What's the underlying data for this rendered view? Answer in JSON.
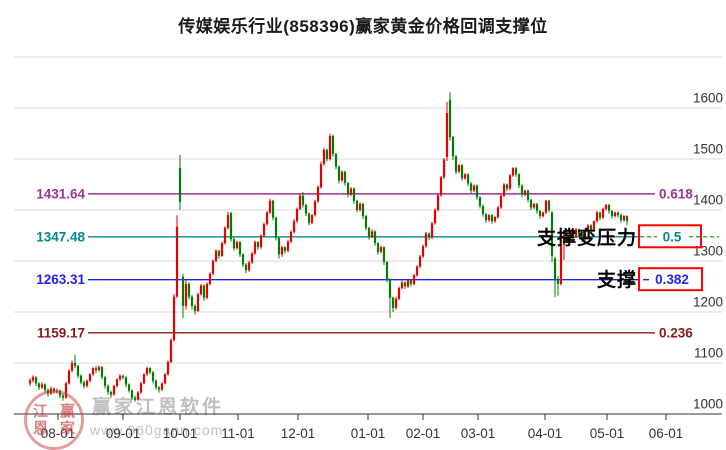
{
  "title": "传媒娱乐行业(858396)赢家黄金价格回调支撑位",
  "annotations": {
    "resistance": "支撑变压力",
    "support": "支撑"
  },
  "watermark": {
    "brand": "赢家江恩软件",
    "url": "www.360gann.com",
    "stamp_chars": [
      "江",
      "赢",
      "恩",
      "家"
    ]
  },
  "colors": {
    "up": "#e60000",
    "down": "#027d02",
    "grid": "#d9d9d9",
    "axis": "#333333",
    "tick_label": "#333333",
    "box_border": "#ff0000",
    "dashed_extension": "#1f9e1f"
  },
  "y_axis": {
    "labels": [
      "1600",
      "1500",
      "1400",
      "1300",
      "1200",
      "1100",
      "1000"
    ]
  },
  "x_axis": {
    "labels": [
      "08-01",
      "09-01",
      "10-01",
      "11-01",
      "12-01",
      "01-01",
      "02-01",
      "03-01",
      "04-01",
      "05-01",
      "06-01"
    ],
    "tick_positions": [
      58,
      123,
      180,
      238,
      298,
      368,
      423,
      478,
      545,
      607,
      666
    ]
  },
  "fib_levels": [
    {
      "price": 1431.64,
      "price_label": "1431.64",
      "ratio_label": "0.618",
      "color": "#993399",
      "boxed": false
    },
    {
      "price": 1347.48,
      "price_label": "1347.48",
      "ratio_label": "0.5",
      "color": "#008b8b",
      "boxed": true,
      "dashed_extension": true
    },
    {
      "price": 1263.31,
      "price_label": "1263.31",
      "ratio_label": "0.382",
      "color": "#2222ee",
      "boxed": true,
      "dashed_extension": false
    },
    {
      "price": 1159.17,
      "price_label": "1159.17",
      "ratio_label": "0.236",
      "color": "#8b1a1a",
      "boxed": false
    }
  ],
  "chart_data": {
    "type": "candlestick",
    "title": "传媒娱乐行业(858396)赢家黄金价格回调支撑位",
    "ylim": [
      1000,
      1700
    ],
    "grid_prices": [
      1700,
      1600,
      1500,
      1400,
      1300,
      1200,
      1100
    ],
    "x_range_labels": [
      "08-01",
      "06-01"
    ],
    "up_means": "red (Chinese convention: red = up, green = down)",
    "candles": [
      [
        1060,
        1070,
        1055,
        1066
      ],
      [
        1066,
        1076,
        1062,
        1072
      ],
      [
        1072,
        1074,
        1055,
        1060
      ],
      [
        1060,
        1062,
        1047,
        1052
      ],
      [
        1052,
        1062,
        1049,
        1058
      ],
      [
        1058,
        1060,
        1042,
        1047
      ],
      [
        1047,
        1050,
        1034,
        1040
      ],
      [
        1040,
        1054,
        1037,
        1050
      ],
      [
        1050,
        1052,
        1040,
        1044
      ],
      [
        1044,
        1050,
        1040,
        1046
      ],
      [
        1046,
        1048,
        1031,
        1036
      ],
      [
        1036,
        1040,
        1026,
        1032
      ],
      [
        1032,
        1063,
        1030,
        1060
      ],
      [
        1060,
        1088,
        1058,
        1085
      ],
      [
        1085,
        1105,
        1082,
        1100
      ],
      [
        1100,
        1116,
        1090,
        1094
      ],
      [
        1094,
        1096,
        1070,
        1075
      ],
      [
        1075,
        1078,
        1058,
        1062
      ],
      [
        1062,
        1066,
        1050,
        1055
      ],
      [
        1055,
        1068,
        1052,
        1065
      ],
      [
        1065,
        1080,
        1062,
        1078
      ],
      [
        1078,
        1092,
        1075,
        1090
      ],
      [
        1090,
        1094,
        1080,
        1086
      ],
      [
        1086,
        1095,
        1083,
        1092
      ],
      [
        1092,
        1094,
        1068,
        1072
      ],
      [
        1072,
        1075,
        1050,
        1055
      ],
      [
        1055,
        1058,
        1038,
        1043
      ],
      [
        1043,
        1046,
        1032,
        1038
      ],
      [
        1038,
        1057,
        1036,
        1055
      ],
      [
        1055,
        1070,
        1052,
        1068
      ],
      [
        1068,
        1078,
        1064,
        1075
      ],
      [
        1075,
        1077,
        1068,
        1072
      ],
      [
        1072,
        1074,
        1052,
        1058
      ],
      [
        1058,
        1060,
        1042,
        1046
      ],
      [
        1046,
        1048,
        1028,
        1032
      ],
      [
        1032,
        1036,
        1024,
        1028
      ],
      [
        1028,
        1045,
        1026,
        1042
      ],
      [
        1042,
        1063,
        1040,
        1060
      ],
      [
        1060,
        1080,
        1058,
        1078
      ],
      [
        1078,
        1093,
        1075,
        1090
      ],
      [
        1090,
        1092,
        1078,
        1082
      ],
      [
        1082,
        1084,
        1060,
        1065
      ],
      [
        1065,
        1068,
        1048,
        1052
      ],
      [
        1052,
        1055,
        1042,
        1048
      ],
      [
        1048,
        1062,
        1045,
        1060
      ],
      [
        1060,
        1080,
        1058,
        1078
      ],
      [
        1078,
        1105,
        1075,
        1102
      ],
      [
        1102,
        1148,
        1100,
        1145
      ],
      [
        1145,
        1235,
        1142,
        1230
      ],
      [
        1230,
        1390,
        1228,
        1367
      ],
      [
        1482,
        1508,
        1400,
        1416
      ],
      [
        1269,
        1275,
        1188,
        1212
      ],
      [
        1212,
        1262,
        1205,
        1255
      ],
      [
        1255,
        1258,
        1225,
        1230
      ],
      [
        1230,
        1233,
        1205,
        1212
      ],
      [
        1212,
        1215,
        1195,
        1202
      ],
      [
        1202,
        1238,
        1200,
        1235
      ],
      [
        1235,
        1255,
        1232,
        1252
      ],
      [
        1252,
        1254,
        1222,
        1228
      ],
      [
        1228,
        1258,
        1225,
        1255
      ],
      [
        1255,
        1278,
        1252,
        1275
      ],
      [
        1275,
        1303,
        1272,
        1300
      ],
      [
        1300,
        1323,
        1297,
        1320
      ],
      [
        1320,
        1322,
        1305,
        1310
      ],
      [
        1310,
        1338,
        1308,
        1335
      ],
      [
        1335,
        1368,
        1332,
        1365
      ],
      [
        1365,
        1396,
        1362,
        1390
      ],
      [
        1394,
        1396,
        1338,
        1343
      ],
      [
        1343,
        1346,
        1320,
        1325
      ],
      [
        1325,
        1340,
        1322,
        1337
      ],
      [
        1337,
        1339,
        1308,
        1313
      ],
      [
        1313,
        1315,
        1288,
        1293
      ],
      [
        1293,
        1296,
        1276,
        1282
      ],
      [
        1282,
        1300,
        1279,
        1297
      ],
      [
        1297,
        1318,
        1294,
        1315
      ],
      [
        1315,
        1340,
        1312,
        1337
      ],
      [
        1337,
        1339,
        1322,
        1327
      ],
      [
        1327,
        1352,
        1324,
        1350
      ],
      [
        1350,
        1375,
        1347,
        1372
      ],
      [
        1372,
        1398,
        1369,
        1395
      ],
      [
        1395,
        1422,
        1392,
        1418
      ],
      [
        1418,
        1420,
        1380,
        1385
      ],
      [
        1385,
        1387,
        1340,
        1345
      ],
      [
        1345,
        1347,
        1305,
        1313
      ],
      [
        1313,
        1330,
        1308,
        1327
      ],
      [
        1327,
        1329,
        1315,
        1320
      ],
      [
        1320,
        1342,
        1317,
        1338
      ],
      [
        1338,
        1360,
        1335,
        1357
      ],
      [
        1357,
        1382,
        1354,
        1378
      ],
      [
        1378,
        1405,
        1375,
        1402
      ],
      [
        1402,
        1432,
        1399,
        1428
      ],
      [
        1428,
        1435,
        1405,
        1410
      ],
      [
        1410,
        1412,
        1388,
        1393
      ],
      [
        1393,
        1395,
        1370,
        1375
      ],
      [
        1375,
        1392,
        1372,
        1390
      ],
      [
        1390,
        1420,
        1387,
        1417
      ],
      [
        1417,
        1448,
        1414,
        1445
      ],
      [
        1445,
        1495,
        1442,
        1490
      ],
      [
        1490,
        1522,
        1487,
        1518
      ],
      [
        1518,
        1520,
        1495,
        1500
      ],
      [
        1500,
        1550,
        1497,
        1545
      ],
      [
        1545,
        1548,
        1505,
        1510
      ],
      [
        1510,
        1512,
        1480,
        1485
      ],
      [
        1485,
        1487,
        1452,
        1458
      ],
      [
        1458,
        1478,
        1455,
        1475
      ],
      [
        1475,
        1477,
        1448,
        1453
      ],
      [
        1453,
        1455,
        1425,
        1430
      ],
      [
        1430,
        1445,
        1427,
        1442
      ],
      [
        1442,
        1444,
        1412,
        1418
      ],
      [
        1418,
        1420,
        1395,
        1400
      ],
      [
        1400,
        1415,
        1397,
        1412
      ],
      [
        1412,
        1414,
        1382,
        1388
      ],
      [
        1388,
        1390,
        1360,
        1365
      ],
      [
        1365,
        1367,
        1342,
        1348
      ],
      [
        1348,
        1362,
        1345,
        1358
      ],
      [
        1358,
        1360,
        1330,
        1335
      ],
      [
        1335,
        1337,
        1312,
        1318
      ],
      [
        1318,
        1330,
        1315,
        1327
      ],
      [
        1327,
        1329,
        1292,
        1298
      ],
      [
        1298,
        1300,
        1258,
        1264
      ],
      [
        1264,
        1266,
        1188,
        1228
      ],
      [
        1228,
        1230,
        1200,
        1208
      ],
      [
        1208,
        1230,
        1205,
        1226
      ],
      [
        1226,
        1250,
        1223,
        1247
      ],
      [
        1247,
        1262,
        1244,
        1258
      ],
      [
        1258,
        1260,
        1245,
        1250
      ],
      [
        1250,
        1265,
        1247,
        1262
      ],
      [
        1262,
        1264,
        1250,
        1255
      ],
      [
        1255,
        1275,
        1252,
        1272
      ],
      [
        1272,
        1292,
        1269,
        1289
      ],
      [
        1289,
        1312,
        1286,
        1309
      ],
      [
        1309,
        1332,
        1306,
        1329
      ],
      [
        1329,
        1357,
        1326,
        1354
      ],
      [
        1354,
        1356,
        1341,
        1346
      ],
      [
        1346,
        1377,
        1343,
        1374
      ],
      [
        1374,
        1403,
        1371,
        1400
      ],
      [
        1400,
        1432,
        1397,
        1429
      ],
      [
        1429,
        1467,
        1426,
        1464
      ],
      [
        1464,
        1502,
        1461,
        1499
      ],
      [
        1504,
        1612,
        1496,
        1590
      ],
      [
        1616,
        1631,
        1536,
        1543
      ],
      [
        1543,
        1545,
        1498,
        1505
      ],
      [
        1505,
        1508,
        1470,
        1475
      ],
      [
        1475,
        1490,
        1472,
        1488
      ],
      [
        1488,
        1490,
        1457,
        1462
      ],
      [
        1462,
        1472,
        1459,
        1470
      ],
      [
        1470,
        1472,
        1447,
        1452
      ],
      [
        1452,
        1455,
        1433,
        1438
      ],
      [
        1438,
        1450,
        1435,
        1448
      ],
      [
        1448,
        1450,
        1420,
        1425
      ],
      [
        1425,
        1427,
        1403,
        1408
      ],
      [
        1408,
        1410,
        1387,
        1392
      ],
      [
        1392,
        1394,
        1375,
        1380
      ],
      [
        1380,
        1392,
        1377,
        1390
      ],
      [
        1390,
        1392,
        1373,
        1378
      ],
      [
        1378,
        1388,
        1375,
        1386
      ],
      [
        1386,
        1408,
        1383,
        1405
      ],
      [
        1405,
        1430,
        1402,
        1428
      ],
      [
        1428,
        1453,
        1425,
        1450
      ],
      [
        1450,
        1452,
        1437,
        1442
      ],
      [
        1442,
        1470,
        1439,
        1468
      ],
      [
        1468,
        1484,
        1465,
        1482
      ],
      [
        1482,
        1484,
        1465,
        1470
      ],
      [
        1470,
        1472,
        1443,
        1448
      ],
      [
        1448,
        1450,
        1425,
        1430
      ],
      [
        1430,
        1440,
        1427,
        1438
      ],
      [
        1438,
        1440,
        1415,
        1420
      ],
      [
        1420,
        1422,
        1400,
        1405
      ],
      [
        1405,
        1414,
        1402,
        1412
      ],
      [
        1412,
        1414,
        1393,
        1398
      ],
      [
        1398,
        1400,
        1383,
        1388
      ],
      [
        1388,
        1397,
        1385,
        1395
      ],
      [
        1395,
        1420,
        1392,
        1418
      ],
      [
        1418,
        1420,
        1395,
        1400
      ],
      [
        1395,
        1398,
        1298,
        1310
      ],
      [
        1305,
        1308,
        1229,
        1262
      ],
      [
        1262,
        1270,
        1232,
        1255
      ],
      [
        1255,
        1335,
        1252,
        1332
      ],
      [
        1332,
        1355,
        1302,
        1352
      ],
      [
        1352,
        1354,
        1335,
        1340
      ],
      [
        1340,
        1360,
        1337,
        1358
      ],
      [
        1358,
        1360,
        1343,
        1348
      ],
      [
        1348,
        1365,
        1345,
        1362
      ],
      [
        1362,
        1364,
        1347,
        1352
      ],
      [
        1352,
        1354,
        1337,
        1342
      ],
      [
        1342,
        1362,
        1339,
        1360
      ],
      [
        1360,
        1372,
        1357,
        1370
      ],
      [
        1370,
        1372,
        1357,
        1362
      ],
      [
        1362,
        1380,
        1359,
        1378
      ],
      [
        1378,
        1398,
        1375,
        1395
      ],
      [
        1395,
        1397,
        1380,
        1385
      ],
      [
        1385,
        1405,
        1382,
        1402
      ],
      [
        1402,
        1412,
        1399,
        1410
      ],
      [
        1410,
        1412,
        1393,
        1398
      ],
      [
        1398,
        1400,
        1383,
        1388
      ],
      [
        1388,
        1397,
        1385,
        1395
      ],
      [
        1395,
        1397,
        1385,
        1390
      ],
      [
        1390,
        1392,
        1375,
        1380
      ],
      [
        1380,
        1390,
        1377,
        1388
      ],
      [
        1388,
        1390,
        1370,
        1378
      ]
    ]
  }
}
